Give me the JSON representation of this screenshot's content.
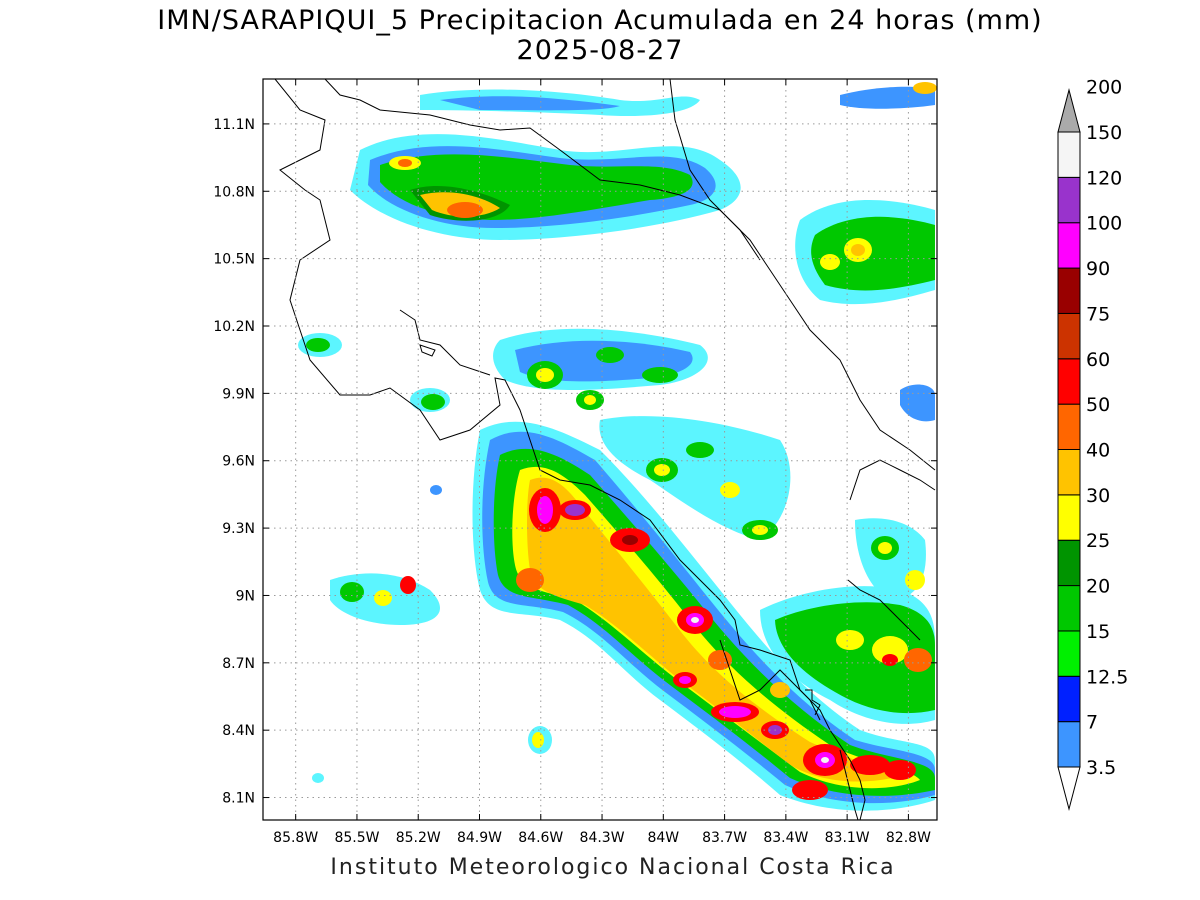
{
  "title": {
    "line1": "IMN/SARAPIQUI_5 Precipitacion Acumulada en 24 horas (mm)",
    "line2": "2025-08-27"
  },
  "footer": "Instituto Meteorologico Nacional Costa Rica",
  "map": {
    "lon_range": [
      -85.96,
      -82.66
    ],
    "lat_range": [
      8.0,
      11.3
    ],
    "lon_ticks": [
      {
        "value": -85.8,
        "label": "85.8W"
      },
      {
        "value": -85.5,
        "label": "85.5W"
      },
      {
        "value": -85.2,
        "label": "85.2W"
      },
      {
        "value": -84.9,
        "label": "84.9W"
      },
      {
        "value": -84.6,
        "label": "84.6W"
      },
      {
        "value": -84.3,
        "label": "84.3W"
      },
      {
        "value": -84.0,
        "label": "84W"
      },
      {
        "value": -83.7,
        "label": "83.7W"
      },
      {
        "value": -83.4,
        "label": "83.4W"
      },
      {
        "value": -83.1,
        "label": "83.1W"
      },
      {
        "value": -82.8,
        "label": "82.8W"
      }
    ],
    "lat_ticks": [
      {
        "value": 11.1,
        "label": "11.1N"
      },
      {
        "value": 10.8,
        "label": "10.8N"
      },
      {
        "value": 10.5,
        "label": "10.5N"
      },
      {
        "value": 10.2,
        "label": "10.2N"
      },
      {
        "value": 9.9,
        "label": "9.9N"
      },
      {
        "value": 9.6,
        "label": "9.6N"
      },
      {
        "value": 9.3,
        "label": "9.3N"
      },
      {
        "value": 9.0,
        "label": "9N"
      },
      {
        "value": 8.7,
        "label": "8.7N"
      },
      {
        "value": 8.4,
        "label": "8.4N"
      },
      {
        "value": 8.1,
        "label": "8.1N"
      }
    ],
    "grid": true
  },
  "colorbar": {
    "levels": [
      {
        "label": "3.5",
        "color": "#5cf5ff"
      },
      {
        "label": "7",
        "color": "#3d95ff"
      },
      {
        "label": "12.5",
        "color": "#0020ff"
      },
      {
        "label": "15",
        "color": "#00f000"
      },
      {
        "label": "20",
        "color": "#00c800"
      },
      {
        "label": "25",
        "color": "#009400"
      },
      {
        "label": "30",
        "color": "#ffff00"
      },
      {
        "label": "40",
        "color": "#ffc300"
      },
      {
        "label": "50",
        "color": "#ff6600"
      },
      {
        "label": "60",
        "color": "#ff0000"
      },
      {
        "label": "75",
        "color": "#cc3300"
      },
      {
        "label": "90",
        "color": "#990000"
      },
      {
        "label": "100",
        "color": "#ff00ff"
      },
      {
        "label": "120",
        "color": "#9933cc"
      },
      {
        "label": "150",
        "color": "#f5f5f5"
      },
      {
        "label": "200",
        "color": "#aaaaaa"
      }
    ]
  }
}
